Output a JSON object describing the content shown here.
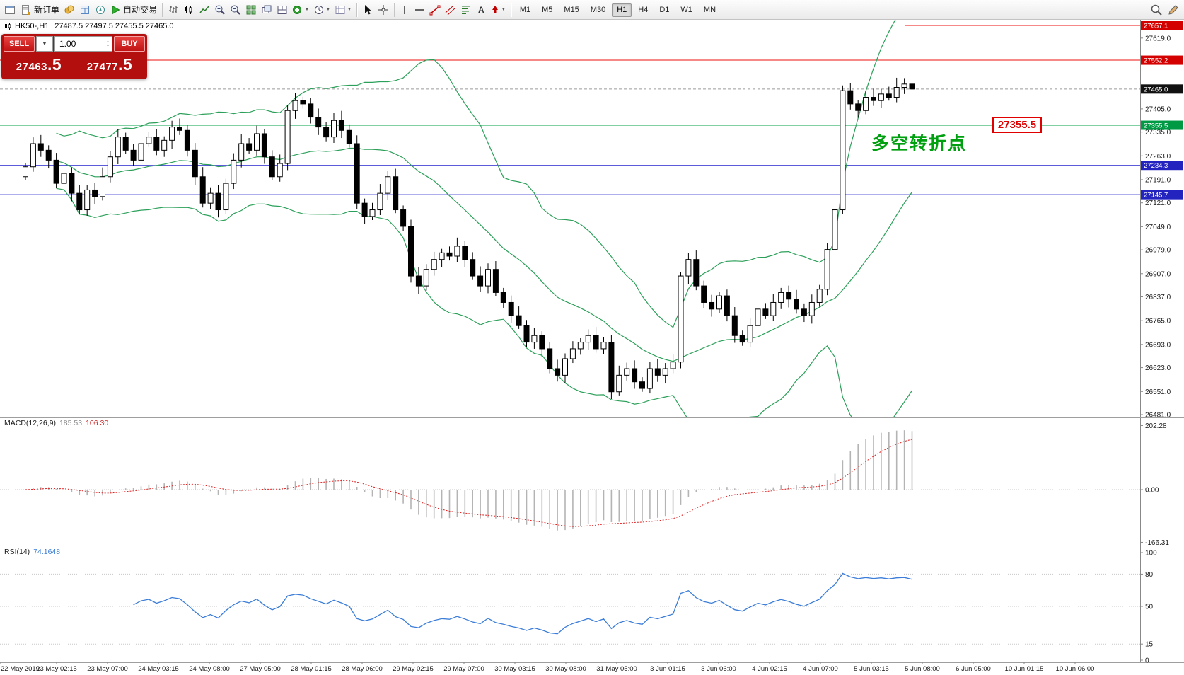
{
  "toolbar": {
    "new_order": "新订单",
    "auto_trading": "自动交易",
    "timeframes": [
      "M1",
      "M5",
      "M15",
      "M30",
      "H1",
      "H4",
      "D1",
      "W1",
      "MN"
    ],
    "active_timeframe": "H1"
  },
  "trade_panel": {
    "sell_label": "SELL",
    "buy_label": "BUY",
    "volume": "1.00",
    "sell_price": "27463",
    "sell_frac": ".5",
    "buy_price": "27477",
    "buy_frac": ".5"
  },
  "symbol_header": {
    "symbol_period": "HK50-,H1",
    "ohlc_text": "27487.5 27497.5 27455.5 27465.0"
  },
  "indicators": {
    "macd": {
      "name": "MACD(12,26,9)",
      "hist_value": "185.53",
      "signal_value": "106.30"
    },
    "rsi": {
      "name": "RSI(14)",
      "value": "74.1648"
    }
  },
  "annotation": {
    "text": "多空转折点",
    "price_label": "27355.5"
  },
  "chart_data": {
    "type": "candlestick",
    "symbol": "HK50-",
    "timeframe": "H1",
    "ohlc_header": {
      "open": "27487.5",
      "high": "27497.5",
      "low": "27455.5",
      "close": "27465.0"
    },
    "price_range": {
      "top": 27657.1,
      "bottom": 26481.0
    },
    "price_axis": [
      27619.0,
      27547.0,
      27477.0,
      27405.0,
      27335.0,
      27263.0,
      27191.0,
      27121.0,
      27049.0,
      26979.0,
      26907.0,
      26837.0,
      26765.0,
      26693.0,
      26623.0,
      26551.0,
      26481.0
    ],
    "hlines": [
      {
        "value": 27657.1,
        "color": "#ee1111",
        "label_bg": "#d40000",
        "partial": true
      },
      {
        "value": 27552.2,
        "color": "#ee1111",
        "label_bg": "#d40000"
      },
      {
        "value": 27465.0,
        "color": "#9a9a9a",
        "label_bg": "#111111",
        "dashed": true
      },
      {
        "value": 27355.5,
        "color": "#00a24a",
        "label_bg": "#009a45"
      },
      {
        "value": 27234.3,
        "color": "#2727cd",
        "label_bg": "#2323c0"
      },
      {
        "value": 27145.7,
        "color": "#2727cd",
        "label_bg": "#2323c0"
      }
    ],
    "time_axis": [
      "22 May 2019",
      "23 May 02:15",
      "23 May 07:00",
      "24 May 03:15",
      "24 May 08:00",
      "27 May 05:00",
      "28 May 01:15",
      "28 May 06:00",
      "29 May 02:15",
      "29 May 07:00",
      "30 May 03:15",
      "30 May 08:00",
      "31 May 05:00",
      "3 Jun 01:15",
      "3 Jun 06:00",
      "4 Jun 02:15",
      "4 Jun 07:00",
      "5 Jun 03:15",
      "5 Jun 08:00",
      "6 Jun 05:00",
      "10 Jun 01:15",
      "10 Jun 06:00"
    ],
    "first_open": 27200,
    "closes": [
      27230,
      27300,
      27280,
      27250,
      27180,
      27210,
      27150,
      27100,
      27160,
      27140,
      27200,
      27260,
      27320,
      27280,
      27250,
      27300,
      27320,
      27280,
      27310,
      27350,
      27340,
      27280,
      27200,
      27120,
      27150,
      27100,
      27180,
      27250,
      27300,
      27280,
      27330,
      27260,
      27200,
      27240,
      27400,
      27430,
      27420,
      27380,
      27350,
      27320,
      27370,
      27340,
      27300,
      27120,
      27080,
      27100,
      27150,
      27200,
      27100,
      27050,
      26900,
      26870,
      26920,
      26950,
      26970,
      26960,
      26990,
      26950,
      26900,
      26870,
      26920,
      26850,
      26820,
      26780,
      26750,
      26700,
      26720,
      26680,
      26620,
      26600,
      26650,
      26680,
      26700,
      26720,
      26680,
      26700,
      26550,
      26600,
      26620,
      26580,
      26560,
      26620,
      26600,
      26620,
      26640,
      26900,
      26950,
      26870,
      26820,
      26800,
      26840,
      26780,
      26720,
      26700,
      26750,
      26800,
      26780,
      26820,
      26850,
      26830,
      26800,
      26780,
      26820,
      26860,
      26980,
      27100,
      27460,
      27420,
      27400,
      27440,
      27430,
      27450,
      27440,
      27470,
      27480,
      27465
    ],
    "bollinger": {
      "period": 20,
      "deviation": 2,
      "color": "#2ca05a"
    },
    "macd": {
      "fast": 12,
      "slow": 26,
      "signal": 9,
      "axis": [
        202.28,
        0.0,
        -166.31
      ],
      "hist_color": "#b4b4b4",
      "signal_color": "#e02020"
    },
    "rsi": {
      "period": 14,
      "levels": [
        80,
        50,
        15
      ],
      "axis": [
        100,
        80,
        50,
        15,
        0
      ],
      "color": "#3b7dd8"
    }
  }
}
